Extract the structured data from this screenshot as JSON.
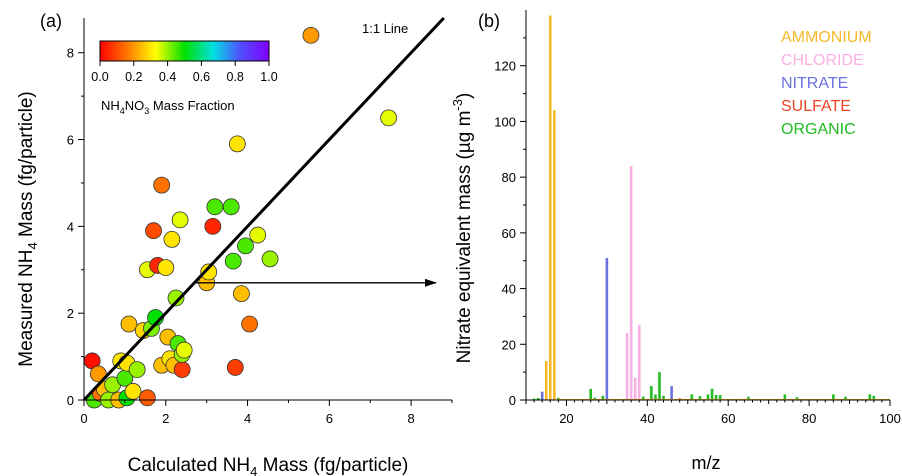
{
  "chart_data": [
    {
      "type": "scatter",
      "panel_label": "(a)",
      "xlabel_main": "Calculated NH",
      "xlabel_sub": "4",
      "xlabel_tail": " Mass (fg/particle)",
      "ylabel_main": "Measured NH",
      "ylabel_sub": "4",
      "ylabel_tail": " Mass (fg/particle)",
      "xlim": [
        0,
        9
      ],
      "ylim": [
        0,
        8.8
      ],
      "xticks": [
        "0",
        "2",
        "4",
        "6",
        "8"
      ],
      "yticks": [
        "0",
        "2",
        "4",
        "6",
        "8"
      ],
      "line_label": "1:1 Line",
      "colorbar": {
        "ticks": [
          "0.0",
          "0.2",
          "0.4",
          "0.6",
          "0.8",
          "1.0"
        ],
        "label_main": "NH",
        "label_sub1": "4",
        "label_mid": "NO",
        "label_sub2": "3",
        "label_tail": " Mass Fraction",
        "colors": [
          "#ff0000",
          "#ff7f00",
          "#ffff00",
          "#00e000",
          "#00e0e0",
          "#5050ff",
          "#8000ff"
        ]
      },
      "arrow": {
        "from": [
          2.7,
          2.7
        ],
        "to": [
          8.9,
          2.7
        ]
      },
      "points": [
        {
          "x": 0.2,
          "y": 0.9,
          "c": 0.02
        },
        {
          "x": 0.3,
          "y": 0.05,
          "c": 0.35
        },
        {
          "x": 0.25,
          "y": 0.0,
          "c": 0.45
        },
        {
          "x": 0.35,
          "y": 0.6,
          "c": 0.2
        },
        {
          "x": 0.4,
          "y": 0.15,
          "c": 0.15
        },
        {
          "x": 0.5,
          "y": 0.25,
          "c": 0.25
        },
        {
          "x": 0.6,
          "y": 0.0,
          "c": 0.4
        },
        {
          "x": 0.7,
          "y": 0.35,
          "c": 0.4
        },
        {
          "x": 0.85,
          "y": 0.0,
          "c": 0.25
        },
        {
          "x": 0.9,
          "y": 0.9,
          "c": 0.3
        },
        {
          "x": 1.0,
          "y": 0.5,
          "c": 0.45
        },
        {
          "x": 1.05,
          "y": 0.85,
          "c": 0.3
        },
        {
          "x": 1.05,
          "y": 0.05,
          "c": 0.5
        },
        {
          "x": 1.1,
          "y": 1.75,
          "c": 0.25
        },
        {
          "x": 1.2,
          "y": 0.2,
          "c": 0.3
        },
        {
          "x": 1.3,
          "y": 0.7,
          "c": 0.4
        },
        {
          "x": 1.45,
          "y": 1.6,
          "c": 0.28
        },
        {
          "x": 1.55,
          "y": 0.05,
          "c": 0.12
        },
        {
          "x": 1.55,
          "y": 3.0,
          "c": 0.35
        },
        {
          "x": 1.65,
          "y": 1.65,
          "c": 0.42
        },
        {
          "x": 1.75,
          "y": 1.9,
          "c": 0.5
        },
        {
          "x": 1.7,
          "y": 3.9,
          "c": 0.1
        },
        {
          "x": 1.8,
          "y": 3.1,
          "c": 0.05
        },
        {
          "x": 1.9,
          "y": 0.8,
          "c": 0.25
        },
        {
          "x": 1.9,
          "y": 4.95,
          "c": 0.15
        },
        {
          "x": 2.0,
          "y": 3.05,
          "c": 0.3
        },
        {
          "x": 2.05,
          "y": 1.45,
          "c": 0.25
        },
        {
          "x": 2.1,
          "y": 0.95,
          "c": 0.3
        },
        {
          "x": 2.15,
          "y": 3.7,
          "c": 0.3
        },
        {
          "x": 2.2,
          "y": 0.8,
          "c": 0.25
        },
        {
          "x": 2.25,
          "y": 2.35,
          "c": 0.4
        },
        {
          "x": 2.3,
          "y": 1.3,
          "c": 0.45
        },
        {
          "x": 2.35,
          "y": 4.15,
          "c": 0.35
        },
        {
          "x": 2.4,
          "y": 0.7,
          "c": 0.08
        },
        {
          "x": 2.4,
          "y": 1.05,
          "c": 0.4
        },
        {
          "x": 2.45,
          "y": 1.15,
          "c": 0.35
        },
        {
          "x": 3.0,
          "y": 2.7,
          "c": 0.25
        },
        {
          "x": 3.05,
          "y": 2.95,
          "c": 0.3
        },
        {
          "x": 3.15,
          "y": 4.0,
          "c": 0.05
        },
        {
          "x": 3.2,
          "y": 4.45,
          "c": 0.45
        },
        {
          "x": 3.6,
          "y": 4.45,
          "c": 0.45
        },
        {
          "x": 3.65,
          "y": 3.2,
          "c": 0.45
        },
        {
          "x": 3.7,
          "y": 0.75,
          "c": 0.08
        },
        {
          "x": 3.75,
          "y": 5.9,
          "c": 0.3
        },
        {
          "x": 3.85,
          "y": 2.45,
          "c": 0.25
        },
        {
          "x": 3.95,
          "y": 3.55,
          "c": 0.45
        },
        {
          "x": 4.05,
          "y": 1.75,
          "c": 0.15
        },
        {
          "x": 4.25,
          "y": 3.8,
          "c": 0.35
        },
        {
          "x": 4.55,
          "y": 3.25,
          "c": 0.4
        },
        {
          "x": 5.55,
          "y": 8.4,
          "c": 0.2
        },
        {
          "x": 7.45,
          "y": 6.5,
          "c": 0.35
        }
      ]
    },
    {
      "type": "bar",
      "panel_label": "(b)",
      "xlabel": "m/z",
      "ylabel_main": "Nitrate equivalent mass (µg m",
      "ylabel_sup": "-3",
      "ylabel_tail": ")",
      "xlim": [
        10,
        100
      ],
      "ylim": [
        0,
        140
      ],
      "xticks": [
        "20",
        "40",
        "60",
        "80",
        "100"
      ],
      "yticks": [
        "0",
        "20",
        "40",
        "60",
        "80",
        "100",
        "120"
      ],
      "legend_position": "top-right",
      "series": [
        {
          "name": "AMMONIUM",
          "color": "#f5b928",
          "bars": [
            [
              15,
              14
            ],
            [
              16,
              138
            ],
            [
              17,
              104
            ]
          ]
        },
        {
          "name": "CHLORIDE",
          "color": "#f9b0e2",
          "bars": [
            [
              35,
              24
            ],
            [
              36,
              84
            ],
            [
              37,
              8
            ],
            [
              38,
              27
            ]
          ]
        },
        {
          "name": "NITRATE",
          "color": "#6b72e0",
          "bars": [
            [
              14,
              3
            ],
            [
              30,
              51
            ],
            [
              46,
              5
            ]
          ]
        },
        {
          "name": "SULFATE",
          "color": "#ee4422",
          "bars": [
            [
              48,
              0.6
            ],
            [
              64,
              0.4
            ]
          ]
        },
        {
          "name": "ORGANIC",
          "color": "#22bb22",
          "bars": [
            [
              12,
              0.5
            ],
            [
              13,
              0.7
            ],
            [
              18,
              0.8
            ],
            [
              26,
              4
            ],
            [
              27,
              0.8
            ],
            [
              29,
              1.5
            ],
            [
              39,
              1.2
            ],
            [
              41,
              5
            ],
            [
              42,
              2
            ],
            [
              43,
              10
            ],
            [
              44,
              1.5
            ],
            [
              51,
              2
            ],
            [
              53,
              1.4
            ],
            [
              55,
              2
            ],
            [
              56,
              4
            ],
            [
              57,
              1.8
            ],
            [
              58,
              1.8
            ],
            [
              65,
              1.2
            ],
            [
              74,
              2
            ],
            [
              77,
              1
            ],
            [
              86,
              2
            ],
            [
              89,
              1.2
            ],
            [
              95,
              2
            ],
            [
              96,
              1.5
            ]
          ]
        }
      ]
    }
  ]
}
